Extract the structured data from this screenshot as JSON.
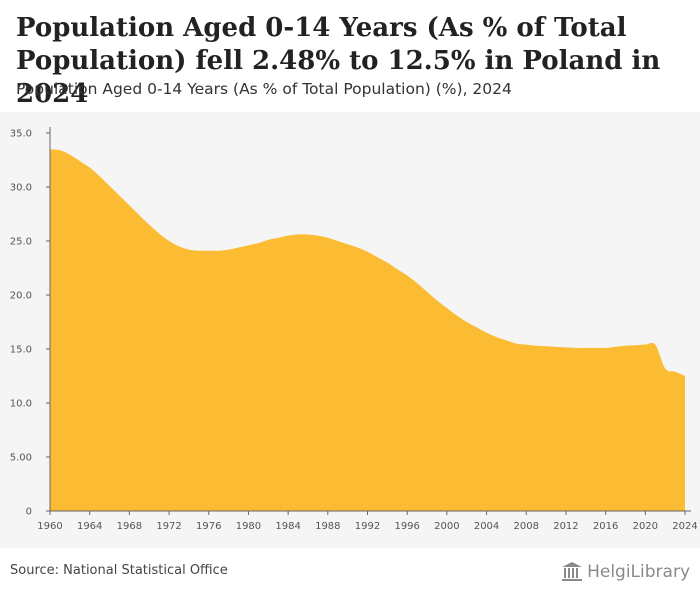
{
  "header": {
    "title": "Population Aged 0-14 Years (As % of Total Population) fell 2.48% to 12.5% in Poland in 2024",
    "subtitle": "Population Aged 0-14 Years (As % of Total Population) (%), 2024"
  },
  "footer": {
    "source": "Source: National Statistical Office",
    "logo_text": "HelgiLibrary"
  },
  "colors": {
    "area_fill": "#fbbb32",
    "plot_bg": "#f5f5f5",
    "axis": "#666666"
  },
  "chart_data": {
    "type": "area",
    "title": "Population Aged 0-14 Years (As % of Total Population) fell 2.48% to 12.5% in Poland in 2024",
    "subtitle": "Population Aged 0-14 Years (As % of Total Population) (%), 2024",
    "xlabel": "",
    "ylabel": "",
    "xlim": [
      1960,
      2024
    ],
    "ylim": [
      0,
      35
    ],
    "grid": false,
    "x_ticks": [
      1960,
      1964,
      1968,
      1972,
      1976,
      1980,
      1984,
      1988,
      1992,
      1996,
      2000,
      2004,
      2008,
      2012,
      2016,
      2020,
      2024
    ],
    "y_ticks": [
      "0",
      "5.00",
      "10.0",
      "15.0",
      "20.0",
      "25.0",
      "30.0",
      "35.0"
    ],
    "y_tick_values": [
      0,
      5,
      10,
      15,
      20,
      25,
      30,
      35
    ],
    "series": [
      {
        "name": "Population Aged 0-14 Years (As % of Total Population)",
        "x": [
          1960,
          1961,
          1962,
          1963,
          1964,
          1965,
          1966,
          1967,
          1968,
          1969,
          1970,
          1971,
          1972,
          1973,
          1974,
          1975,
          1976,
          1977,
          1978,
          1979,
          1980,
          1981,
          1982,
          1983,
          1984,
          1985,
          1986,
          1987,
          1988,
          1989,
          1990,
          1991,
          1992,
          1993,
          1994,
          1995,
          1996,
          1997,
          1998,
          1999,
          2000,
          2001,
          2002,
          2003,
          2004,
          2005,
          2006,
          2007,
          2008,
          2009,
          2010,
          2011,
          2012,
          2013,
          2014,
          2015,
          2016,
          2017,
          2018,
          2019,
          2020,
          2021,
          2022,
          2023,
          2024
        ],
        "values": [
          33.5,
          33.4,
          33.0,
          32.4,
          31.8,
          31.0,
          30.1,
          29.2,
          28.3,
          27.4,
          26.5,
          25.7,
          25.0,
          24.5,
          24.2,
          24.1,
          24.1,
          24.1,
          24.2,
          24.4,
          24.6,
          24.8,
          25.1,
          25.3,
          25.5,
          25.6,
          25.6,
          25.5,
          25.3,
          25.0,
          24.7,
          24.4,
          24.0,
          23.5,
          23.0,
          22.4,
          21.8,
          21.1,
          20.3,
          19.5,
          18.8,
          18.1,
          17.5,
          17.0,
          16.5,
          16.1,
          15.8,
          15.5,
          15.4,
          15.3,
          15.25,
          15.2,
          15.15,
          15.1,
          15.1,
          15.1,
          15.1,
          15.2,
          15.3,
          15.35,
          15.4,
          15.4,
          13.2,
          12.9,
          12.5
        ]
      }
    ],
    "annotations": []
  }
}
